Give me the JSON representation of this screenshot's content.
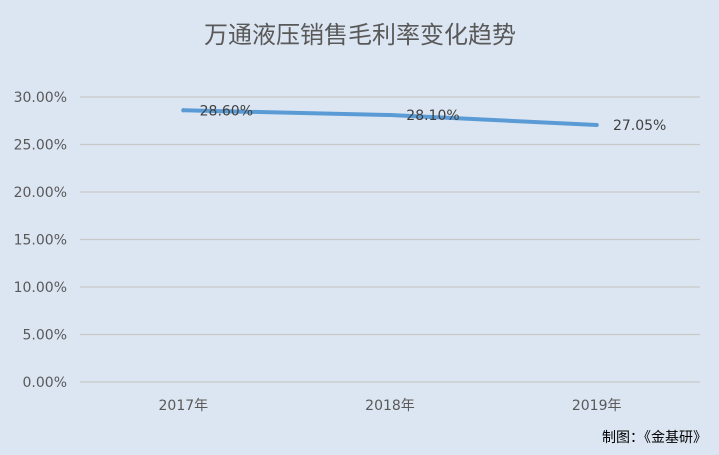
{
  "chart_data": {
    "type": "line",
    "title": "万通液压销售毛利率变化趋势",
    "categories": [
      "2017年",
      "2018年",
      "2019年"
    ],
    "series": [
      {
        "values": [
          28.6,
          28.1,
          27.05
        ],
        "labels": [
          "28.60%",
          "28.10%",
          "27.05%"
        ]
      }
    ],
    "y_ticks": [
      "0.00%",
      "5.00%",
      "10.00%",
      "15.00%",
      "20.00%",
      "25.00%",
      "30.00%"
    ],
    "ylim": [
      0,
      30
    ],
    "grid": true,
    "line_color": "#5b9bd5",
    "background_color": "#dce6f2"
  },
  "source_note": "制图：《金基研》"
}
